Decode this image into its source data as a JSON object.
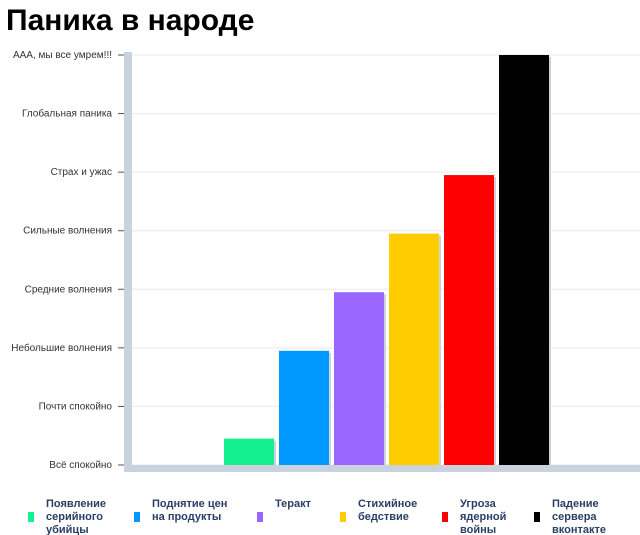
{
  "chart_data": {
    "type": "bar",
    "title": "Паника в народе",
    "xlabel": "",
    "ylabel": "",
    "y_levels": [
      "Всё спокойно",
      "Почти спокойно",
      "Небольшие волнения",
      "Средние волнения",
      "Сильные волнения",
      "Страх и ужас",
      "Глобальная паника",
      "ААА, мы все умрем!!!"
    ],
    "ylim": [
      0,
      7
    ],
    "grid": true,
    "legend_position": "bottom",
    "categories": [
      "Появление\nсерийного\nубийцы",
      "Поднятие цен\nна продукты",
      "Теракт",
      "Стихийное\nбедствие",
      "Угроза\nядерной\nвойны",
      "Падение\nсервера\nвконтакте"
    ],
    "values": [
      0.45,
      1.95,
      2.95,
      3.95,
      4.95,
      7
    ],
    "colors": [
      "#14f08e",
      "#0099ff",
      "#9966ff",
      "#ffcc00",
      "#ff0000",
      "#000000"
    ]
  }
}
